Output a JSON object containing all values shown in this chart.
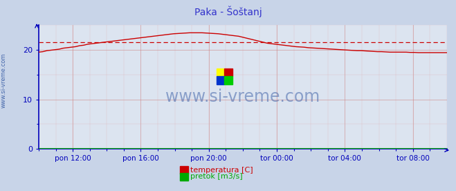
{
  "title": "Paka - Šoštanj",
  "title_color": "#3333cc",
  "bg_color": "#c8d4e8",
  "plot_bg_color": "#dce4f0",
  "x_tick_labels": [
    "pon 12:00",
    "pon 16:00",
    "pon 20:00",
    "tor 00:00",
    "tor 04:00",
    "tor 08:00"
  ],
  "x_tick_positions": [
    0.0833,
    0.25,
    0.4167,
    0.5833,
    0.75,
    0.9167
  ],
  "y_ticks": [
    0,
    10,
    20
  ],
  "ylim": [
    0,
    25
  ],
  "xlim": [
    0,
    1
  ],
  "avg_line_value": 21.5,
  "avg_line_color": "#cc0000",
  "temp_line_color": "#cc0000",
  "flow_line_color": "#00aa00",
  "flow_line_value": 0.15,
  "watermark_text": "www.si-vreme.com",
  "watermark_color": "#4466aa",
  "sidebar_text": "www.si-vreme.com",
  "sidebar_color": "#4466aa",
  "grid_color": "#cc8888",
  "grid_minor_color": "#ddaaaa",
  "axis_color": "#0000bb",
  "tick_color": "#333333",
  "legend_temp_label": "temperatura [C]",
  "legend_flow_label": "pretok [m3/s]",
  "legend_temp_color": "#cc0000",
  "legend_flow_color": "#00aa00",
  "logo_colors": [
    "#ffff00",
    "#ff0000",
    "#0000ff",
    "#00cc00"
  ],
  "temp_data_x": [
    0.0,
    0.01,
    0.02,
    0.03,
    0.04,
    0.05,
    0.06,
    0.07,
    0.08,
    0.09,
    0.1,
    0.11,
    0.12,
    0.13,
    0.14,
    0.15,
    0.16,
    0.17,
    0.18,
    0.19,
    0.2,
    0.21,
    0.22,
    0.23,
    0.24,
    0.25,
    0.26,
    0.27,
    0.28,
    0.29,
    0.3,
    0.31,
    0.32,
    0.33,
    0.34,
    0.35,
    0.36,
    0.37,
    0.38,
    0.39,
    0.4,
    0.41,
    0.42,
    0.43,
    0.44,
    0.45,
    0.46,
    0.47,
    0.48,
    0.49,
    0.5,
    0.51,
    0.52,
    0.53,
    0.54,
    0.55,
    0.56,
    0.57,
    0.58,
    0.59,
    0.6,
    0.61,
    0.62,
    0.63,
    0.64,
    0.65,
    0.66,
    0.67,
    0.68,
    0.69,
    0.7,
    0.71,
    0.72,
    0.73,
    0.74,
    0.75,
    0.76,
    0.77,
    0.78,
    0.79,
    0.8,
    0.81,
    0.82,
    0.83,
    0.84,
    0.85,
    0.86,
    0.87,
    0.88,
    0.89,
    0.9,
    0.91,
    0.92,
    0.93,
    0.94,
    0.95,
    0.96,
    0.97,
    0.98,
    0.99,
    1.0
  ],
  "temp_data_y": [
    19.5,
    19.6,
    19.8,
    19.9,
    20.0,
    20.1,
    20.3,
    20.4,
    20.5,
    20.6,
    20.8,
    20.9,
    21.1,
    21.2,
    21.3,
    21.4,
    21.5,
    21.6,
    21.7,
    21.8,
    21.9,
    22.0,
    22.1,
    22.2,
    22.3,
    22.4,
    22.5,
    22.6,
    22.7,
    22.8,
    22.9,
    23.0,
    23.1,
    23.2,
    23.25,
    23.3,
    23.35,
    23.4,
    23.4,
    23.4,
    23.4,
    23.35,
    23.3,
    23.25,
    23.2,
    23.1,
    23.0,
    22.9,
    22.8,
    22.7,
    22.5,
    22.3,
    22.1,
    21.9,
    21.7,
    21.5,
    21.3,
    21.2,
    21.1,
    21.0,
    20.9,
    20.8,
    20.7,
    20.6,
    20.55,
    20.5,
    20.4,
    20.35,
    20.3,
    20.25,
    20.2,
    20.15,
    20.1,
    20.05,
    20.0,
    19.95,
    19.9,
    19.85,
    19.8,
    19.8,
    19.75,
    19.7,
    19.65,
    19.6,
    19.6,
    19.55,
    19.5,
    19.5,
    19.5,
    19.5,
    19.5,
    19.45,
    19.45,
    19.4,
    19.4,
    19.4,
    19.4,
    19.4,
    19.4,
    19.4,
    19.4
  ]
}
